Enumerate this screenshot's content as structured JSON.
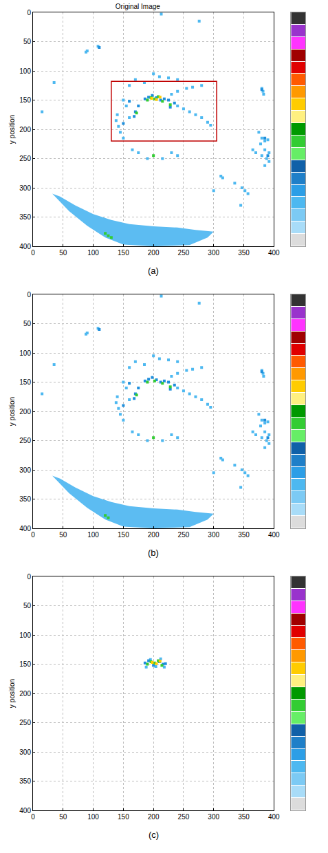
{
  "chart_data": [
    {
      "type": "scatter",
      "title": "Original Image",
      "caption": "(a)",
      "ylabel": "y position",
      "xlim": [
        0,
        400
      ],
      "ylim": [
        400,
        0
      ],
      "xticks": [
        0,
        50,
        100,
        150,
        200,
        250,
        300,
        350,
        400
      ],
      "yticks": [
        0,
        50,
        100,
        150,
        200,
        250,
        300,
        350,
        400
      ],
      "grid": true,
      "marker": "square",
      "box": {
        "x": [
          130,
          305
        ],
        "y": [
          118,
          220
        ],
        "color": "#c00000"
      },
      "regions": [
        {
          "color": "#5cbcf2",
          "x": [
            32,
            60,
            90,
            120,
            150,
            200,
            260,
            290,
            300,
            270,
            240,
            200,
            160,
            130,
            100,
            70,
            45,
            32
          ],
          "y": [
            310,
            340,
            365,
            385,
            397,
            400,
            398,
            385,
            375,
            372,
            368,
            366,
            362,
            355,
            345,
            330,
            315,
            310
          ]
        }
      ],
      "series": [
        {
          "color": "#4db8f0",
          "x": [
            108,
            88,
            90,
            35,
            15,
            213,
            276,
            380,
            382,
            383,
            375,
            380,
            385,
            390,
            378,
            385,
            392,
            380,
            388,
            392,
            385,
            365,
            370,
            312,
            315,
            300,
            335,
            347,
            352,
            357,
            345,
            170,
            200,
            210,
            225,
            240,
            160,
            185,
            150,
            140,
            138,
            142,
            145,
            150,
            240,
            250,
            260,
            270,
            280,
            290,
            295,
            230,
            240,
            255,
            265,
            280,
            165,
            175,
            190,
            230,
            240,
            215,
            160,
            155
          ],
          "y": [
            58,
            68,
            66,
            120,
            170,
            3,
            15,
            130,
            135,
            140,
            205,
            215,
            220,
            218,
            225,
            235,
            240,
            245,
            250,
            255,
            262,
            235,
            240,
            280,
            283,
            305,
            292,
            300,
            305,
            310,
            330,
            115,
            105,
            110,
            112,
            115,
            125,
            120,
            150,
            175,
            185,
            195,
            205,
            215,
            160,
            165,
            170,
            175,
            180,
            188,
            193,
            140,
            135,
            130,
            128,
            125,
            235,
            240,
            250,
            240,
            245,
            250,
            180,
            160
          ]
        },
        {
          "color": "#1f8fdc",
          "x": [
            110,
            380,
            186,
            192,
            198,
            205,
            212,
            218,
            175,
            170,
            168,
            225,
            228,
            235,
            150,
            160,
            385,
            390
          ],
          "y": [
            60,
            132,
            148,
            145,
            142,
            146,
            150,
            148,
            160,
            170,
            178,
            150,
            162,
            155,
            190,
            152,
            215,
            245
          ]
        },
        {
          "color": "#33cc33",
          "x": [
            190,
            196,
            202,
            208,
            215,
            172,
            200,
            228,
            120,
            125,
            130
          ],
          "y": [
            150,
            146,
            148,
            144,
            152,
            172,
            245,
            158,
            378,
            382,
            385
          ]
        },
        {
          "color": "#ffcc00",
          "x": [
            197,
            205,
            211
          ],
          "y": [
            147,
            149,
            145
          ]
        }
      ],
      "colorbar": {
        "colors": [
          "#dcdcdc",
          "#a8dcf8",
          "#7ccaf4",
          "#4db8f0",
          "#2c9ee6",
          "#1f7fc8",
          "#1060a8",
          "#66ee66",
          "#33cc33",
          "#009900",
          "#fff080",
          "#ffcc00",
          "#ff9900",
          "#ff5a00",
          "#e00000",
          "#a00000",
          "#ff33ff",
          "#9933cc",
          "#333333"
        ]
      }
    },
    {
      "type": "scatter",
      "caption": "(b)",
      "ylabel": "y position",
      "xlim": [
        0,
        400
      ],
      "ylim": [
        400,
        0
      ],
      "xticks": [
        0,
        50,
        100,
        150,
        200,
        250,
        300,
        350,
        400
      ],
      "yticks": [
        0,
        50,
        100,
        150,
        200,
        250,
        300,
        350,
        400
      ],
      "grid": true,
      "marker": "square",
      "regions": [
        {
          "color": "#5cbcf2",
          "x": [
            32,
            60,
            90,
            120,
            150,
            200,
            260,
            290,
            300,
            270,
            240,
            200,
            160,
            130,
            100,
            70,
            45,
            32
          ],
          "y": [
            310,
            340,
            365,
            385,
            397,
            400,
            398,
            385,
            375,
            372,
            368,
            366,
            362,
            355,
            345,
            330,
            315,
            310
          ]
        }
      ],
      "series": [
        {
          "color": "#4db8f0",
          "x": [
            108,
            88,
            90,
            35,
            15,
            213,
            276,
            380,
            382,
            383,
            375,
            380,
            385,
            390,
            378,
            385,
            392,
            380,
            388,
            392,
            385,
            365,
            370,
            312,
            315,
            300,
            335,
            347,
            352,
            357,
            345,
            170,
            200,
            210,
            225,
            240,
            160,
            185,
            150,
            140,
            138,
            142,
            145,
            150,
            240,
            250,
            260,
            270,
            280,
            290,
            295,
            230,
            240,
            255,
            265,
            280,
            165,
            175,
            190,
            230,
            240,
            215,
            160,
            155
          ],
          "y": [
            58,
            68,
            66,
            120,
            170,
            3,
            15,
            130,
            135,
            140,
            205,
            215,
            220,
            218,
            225,
            235,
            240,
            245,
            250,
            255,
            262,
            235,
            240,
            280,
            283,
            305,
            292,
            300,
            305,
            310,
            330,
            115,
            105,
            110,
            112,
            115,
            125,
            120,
            150,
            175,
            185,
            195,
            205,
            215,
            160,
            165,
            170,
            175,
            180,
            188,
            193,
            140,
            135,
            130,
            128,
            125,
            235,
            240,
            250,
            240,
            245,
            250,
            180,
            160
          ]
        },
        {
          "color": "#1f8fdc",
          "x": [
            110,
            380,
            186,
            192,
            198,
            205,
            212,
            218,
            175,
            170,
            168,
            225,
            228,
            235,
            150,
            160,
            385,
            390
          ],
          "y": [
            60,
            132,
            148,
            145,
            142,
            146,
            150,
            148,
            160,
            170,
            178,
            150,
            162,
            155,
            190,
            152,
            215,
            245
          ]
        },
        {
          "color": "#33cc33",
          "x": [
            190,
            202,
            215,
            172,
            200,
            228,
            120,
            125
          ],
          "y": [
            150,
            148,
            152,
            172,
            245,
            158,
            378,
            382
          ]
        }
      ],
      "colorbar": {
        "colors": [
          "#dcdcdc",
          "#a8dcf8",
          "#7ccaf4",
          "#4db8f0",
          "#2c9ee6",
          "#1f7fc8",
          "#1060a8",
          "#66ee66",
          "#33cc33",
          "#009900",
          "#fff080",
          "#ffcc00",
          "#ff9900",
          "#ff5a00",
          "#e00000",
          "#a00000",
          "#ff33ff",
          "#9933cc",
          "#333333"
        ]
      }
    },
    {
      "type": "scatter",
      "caption": "(c)",
      "ylabel": "y position",
      "xlim": [
        0,
        400
      ],
      "ylim": [
        400,
        0
      ],
      "xticks": [
        0,
        50,
        100,
        150,
        200,
        250,
        300,
        350,
        400
      ],
      "yticks": [
        0,
        50,
        100,
        150,
        200,
        250,
        300,
        350,
        400
      ],
      "grid": true,
      "marker": "square",
      "series": [
        {
          "color": "#4db8f0",
          "x": [
            188,
            195,
            204,
            212,
            218
          ],
          "y": [
            155,
            142,
            154,
            141,
            155
          ]
        },
        {
          "color": "#1f8fdc",
          "x": [
            186,
            192,
            200,
            210,
            216,
            220
          ],
          "y": [
            148,
            144,
            152,
            146,
            150,
            149
          ]
        },
        {
          "color": "#33cc33",
          "x": [
            190,
            196,
            202,
            208,
            214
          ],
          "y": [
            150,
            146,
            148,
            144,
            152
          ]
        },
        {
          "color": "#ffcc00",
          "x": [
            198,
            205,
            211
          ],
          "y": [
            147,
            149,
            145
          ]
        }
      ],
      "colorbar": {
        "colors": [
          "#dcdcdc",
          "#a8dcf8",
          "#7ccaf4",
          "#4db8f0",
          "#2c9ee6",
          "#1f7fc8",
          "#1060a8",
          "#66ee66",
          "#33cc33",
          "#009900",
          "#fff080",
          "#ffcc00",
          "#ff9900",
          "#ff5a00",
          "#e00000",
          "#a00000",
          "#ff33ff",
          "#9933cc",
          "#333333"
        ]
      }
    }
  ]
}
